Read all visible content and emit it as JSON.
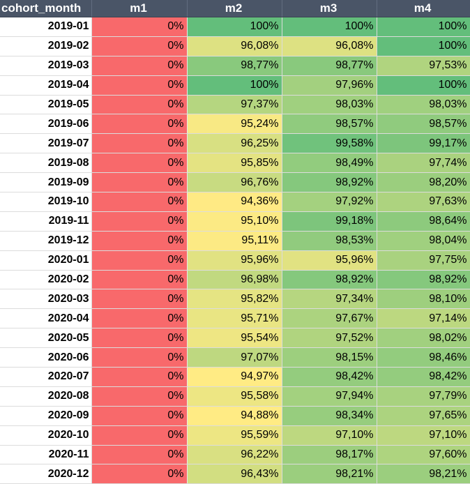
{
  "table": {
    "columns": [
      "cohort_month",
      "m1",
      "m2",
      "m3",
      "m4"
    ],
    "rows": [
      {
        "cohort_month": "2019-01",
        "m1": "0%",
        "m2": "100%",
        "m3": "100%",
        "m4": "100%"
      },
      {
        "cohort_month": "2019-02",
        "m1": "0%",
        "m2": "96,08%",
        "m3": "96,08%",
        "m4": "100%"
      },
      {
        "cohort_month": "2019-03",
        "m1": "0%",
        "m2": "98,77%",
        "m3": "98,77%",
        "m4": "97,53%"
      },
      {
        "cohort_month": "2019-04",
        "m1": "0%",
        "m2": "100%",
        "m3": "97,96%",
        "m4": "100%"
      },
      {
        "cohort_month": "2019-05",
        "m1": "0%",
        "m2": "97,37%",
        "m3": "98,03%",
        "m4": "98,03%"
      },
      {
        "cohort_month": "2019-06",
        "m1": "0%",
        "m2": "95,24%",
        "m3": "98,57%",
        "m4": "98,57%"
      },
      {
        "cohort_month": "2019-07",
        "m1": "0%",
        "m2": "96,25%",
        "m3": "99,58%",
        "m4": "99,17%"
      },
      {
        "cohort_month": "2019-08",
        "m1": "0%",
        "m2": "95,85%",
        "m3": "98,49%",
        "m4": "97,74%"
      },
      {
        "cohort_month": "2019-09",
        "m1": "0%",
        "m2": "96,76%",
        "m3": "98,92%",
        "m4": "98,20%"
      },
      {
        "cohort_month": "2019-10",
        "m1": "0%",
        "m2": "94,36%",
        "m3": "97,92%",
        "m4": "97,63%"
      },
      {
        "cohort_month": "2019-11",
        "m1": "0%",
        "m2": "95,10%",
        "m3": "99,18%",
        "m4": "98,64%"
      },
      {
        "cohort_month": "2019-12",
        "m1": "0%",
        "m2": "95,11%",
        "m3": "98,53%",
        "m4": "98,04%"
      },
      {
        "cohort_month": "2020-01",
        "m1": "0%",
        "m2": "95,96%",
        "m3": "95,96%",
        "m4": "97,75%"
      },
      {
        "cohort_month": "2020-02",
        "m1": "0%",
        "m2": "96,98%",
        "m3": "98,92%",
        "m4": "98,92%"
      },
      {
        "cohort_month": "2020-03",
        "m1": "0%",
        "m2": "95,82%",
        "m3": "97,34%",
        "m4": "98,10%"
      },
      {
        "cohort_month": "2020-04",
        "m1": "0%",
        "m2": "95,71%",
        "m3": "97,67%",
        "m4": "97,14%"
      },
      {
        "cohort_month": "2020-05",
        "m1": "0%",
        "m2": "95,54%",
        "m3": "97,52%",
        "m4": "98,02%"
      },
      {
        "cohort_month": "2020-06",
        "m1": "0%",
        "m2": "97,07%",
        "m3": "98,15%",
        "m4": "98,46%"
      },
      {
        "cohort_month": "2020-07",
        "m1": "0%",
        "m2": "94,97%",
        "m3": "98,42%",
        "m4": "98,42%"
      },
      {
        "cohort_month": "2020-08",
        "m1": "0%",
        "m2": "95,58%",
        "m3": "97,94%",
        "m4": "97,79%"
      },
      {
        "cohort_month": "2020-09",
        "m1": "0%",
        "m2": "94,88%",
        "m3": "98,34%",
        "m4": "97,65%"
      },
      {
        "cohort_month": "2020-10",
        "m1": "0%",
        "m2": "95,59%",
        "m3": "97,10%",
        "m4": "97,10%"
      },
      {
        "cohort_month": "2020-11",
        "m1": "0%",
        "m2": "96,22%",
        "m3": "98,17%",
        "m4": "97,60%"
      },
      {
        "cohort_month": "2020-12",
        "m1": "0%",
        "m2": "96,43%",
        "m3": "98,21%",
        "m4": "98,21%"
      }
    ]
  },
  "colors": {
    "header_bg": "#4a5567",
    "header_text": "#ffffff",
    "low": "#f8696b",
    "mid": "#ffeb84",
    "high": "#63be7b",
    "midpoint_pct": 95
  }
}
